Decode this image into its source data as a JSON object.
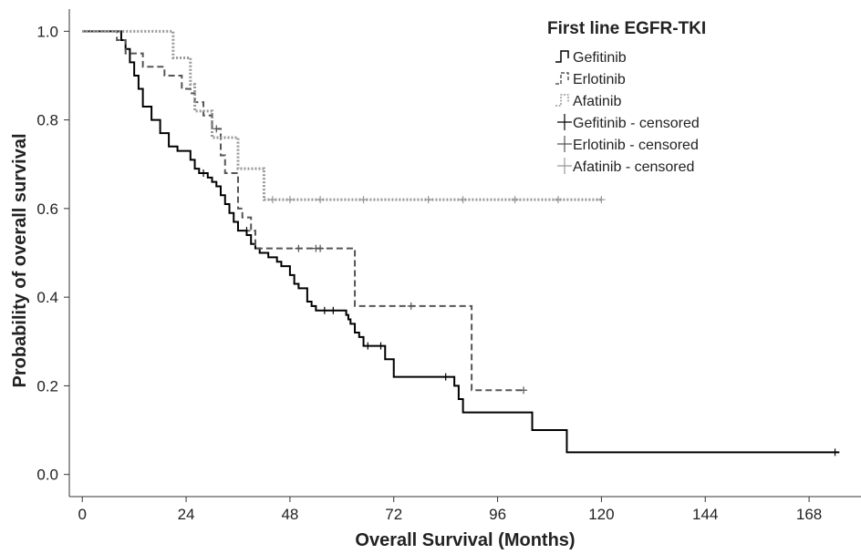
{
  "chart_data": {
    "type": "line",
    "subtype": "kaplan-meier",
    "legend_title": "First line EGFR-TKI",
    "legend_position": "top-right",
    "xlabel": "Overall Survival (Months)",
    "ylabel": "Probability of overall survival",
    "xlim": [
      -3,
      180
    ],
    "ylim": [
      -0.05,
      1.05
    ],
    "xticks": [
      0,
      24,
      48,
      72,
      96,
      120,
      144,
      168
    ],
    "yticks": [
      0.0,
      0.2,
      0.4,
      0.6,
      0.8,
      1.0
    ],
    "ytick_labels": [
      "0.0",
      "0.2",
      "0.4",
      "0.6",
      "0.8",
      "1.0"
    ],
    "grid": false,
    "series": [
      {
        "name": "Gefitinib",
        "style": "solid",
        "color": "#000000",
        "steps": [
          [
            0,
            1.0
          ],
          [
            9,
            0.98
          ],
          [
            10,
            0.96
          ],
          [
            11,
            0.93
          ],
          [
            12,
            0.9
          ],
          [
            13,
            0.87
          ],
          [
            14,
            0.83
          ],
          [
            16,
            0.8
          ],
          [
            18,
            0.77
          ],
          [
            20,
            0.74
          ],
          [
            22,
            0.73
          ],
          [
            25,
            0.71
          ],
          [
            26,
            0.69
          ],
          [
            27,
            0.68
          ],
          [
            29,
            0.67
          ],
          [
            30,
            0.66
          ],
          [
            31,
            0.65
          ],
          [
            32,
            0.63
          ],
          [
            33,
            0.61
          ],
          [
            34,
            0.59
          ],
          [
            35,
            0.57
          ],
          [
            36,
            0.55
          ],
          [
            38,
            0.54
          ],
          [
            39,
            0.52
          ],
          [
            40,
            0.51
          ],
          [
            41,
            0.5
          ],
          [
            43,
            0.49
          ],
          [
            45,
            0.48
          ],
          [
            46,
            0.47
          ],
          [
            48,
            0.45
          ],
          [
            49,
            0.43
          ],
          [
            50,
            0.42
          ],
          [
            52,
            0.39
          ],
          [
            53,
            0.38
          ],
          [
            54,
            0.37
          ],
          [
            61,
            0.36
          ],
          [
            61.5,
            0.35
          ],
          [
            62,
            0.34
          ],
          [
            63,
            0.32
          ],
          [
            64,
            0.31
          ],
          [
            65,
            0.29
          ],
          [
            70,
            0.26
          ],
          [
            72,
            0.22
          ],
          [
            86,
            0.2
          ],
          [
            87,
            0.17
          ],
          [
            88,
            0.14
          ],
          [
            104,
            0.1
          ],
          [
            112,
            0.05
          ],
          [
            175,
            0.05
          ]
        ],
        "censored": [
          [
            28,
            0.68
          ],
          [
            38,
            0.55
          ],
          [
            56,
            0.37
          ],
          [
            58,
            0.37
          ],
          [
            66,
            0.29
          ],
          [
            69,
            0.29
          ],
          [
            84,
            0.22
          ],
          [
            174,
            0.05
          ]
        ]
      },
      {
        "name": "Erlotinib",
        "style": "dashed",
        "color": "#555555",
        "steps": [
          [
            0,
            1.0
          ],
          [
            8,
            0.98
          ],
          [
            10,
            0.95
          ],
          [
            14,
            0.92
          ],
          [
            19,
            0.9
          ],
          [
            23,
            0.87
          ],
          [
            25,
            0.86
          ],
          [
            26,
            0.84
          ],
          [
            28,
            0.81
          ],
          [
            30,
            0.78
          ],
          [
            32,
            0.72
          ],
          [
            33,
            0.68
          ],
          [
            36,
            0.6
          ],
          [
            37,
            0.58
          ],
          [
            39,
            0.55
          ],
          [
            40,
            0.51
          ],
          [
            63,
            0.38
          ],
          [
            90,
            0.19
          ],
          [
            102,
            0.19
          ]
        ],
        "censored": [
          [
            31,
            0.78
          ],
          [
            50,
            0.51
          ],
          [
            54,
            0.51
          ],
          [
            55,
            0.51
          ],
          [
            76,
            0.38
          ],
          [
            102,
            0.19
          ]
        ]
      },
      {
        "name": "Afatinib",
        "style": "dotted",
        "color": "#999999",
        "steps": [
          [
            0,
            1.0
          ],
          [
            21,
            0.94
          ],
          [
            25,
            0.88
          ],
          [
            26,
            0.82
          ],
          [
            30,
            0.76
          ],
          [
            36,
            0.69
          ],
          [
            42,
            0.62
          ],
          [
            120,
            0.62
          ]
        ],
        "censored": [
          [
            44,
            0.62
          ],
          [
            48,
            0.62
          ],
          [
            55,
            0.62
          ],
          [
            65,
            0.62
          ],
          [
            80,
            0.62
          ],
          [
            88,
            0.62
          ],
          [
            100,
            0.62
          ],
          [
            110,
            0.62
          ],
          [
            120,
            0.62
          ]
        ]
      }
    ],
    "legend_entries": [
      {
        "label": "Gefitinib",
        "kind": "line",
        "style": "solid"
      },
      {
        "label": "Erlotinib",
        "kind": "line",
        "style": "dashed"
      },
      {
        "label": "Afatinib",
        "kind": "line",
        "style": "dotted"
      },
      {
        "label": "Gefitinib - censored",
        "kind": "cross",
        "style": "solid"
      },
      {
        "label": "Erlotinib - censored",
        "kind": "cross",
        "style": "dashed"
      },
      {
        "label": "Afatinib - censored",
        "kind": "cross",
        "style": "dotted"
      }
    ]
  }
}
